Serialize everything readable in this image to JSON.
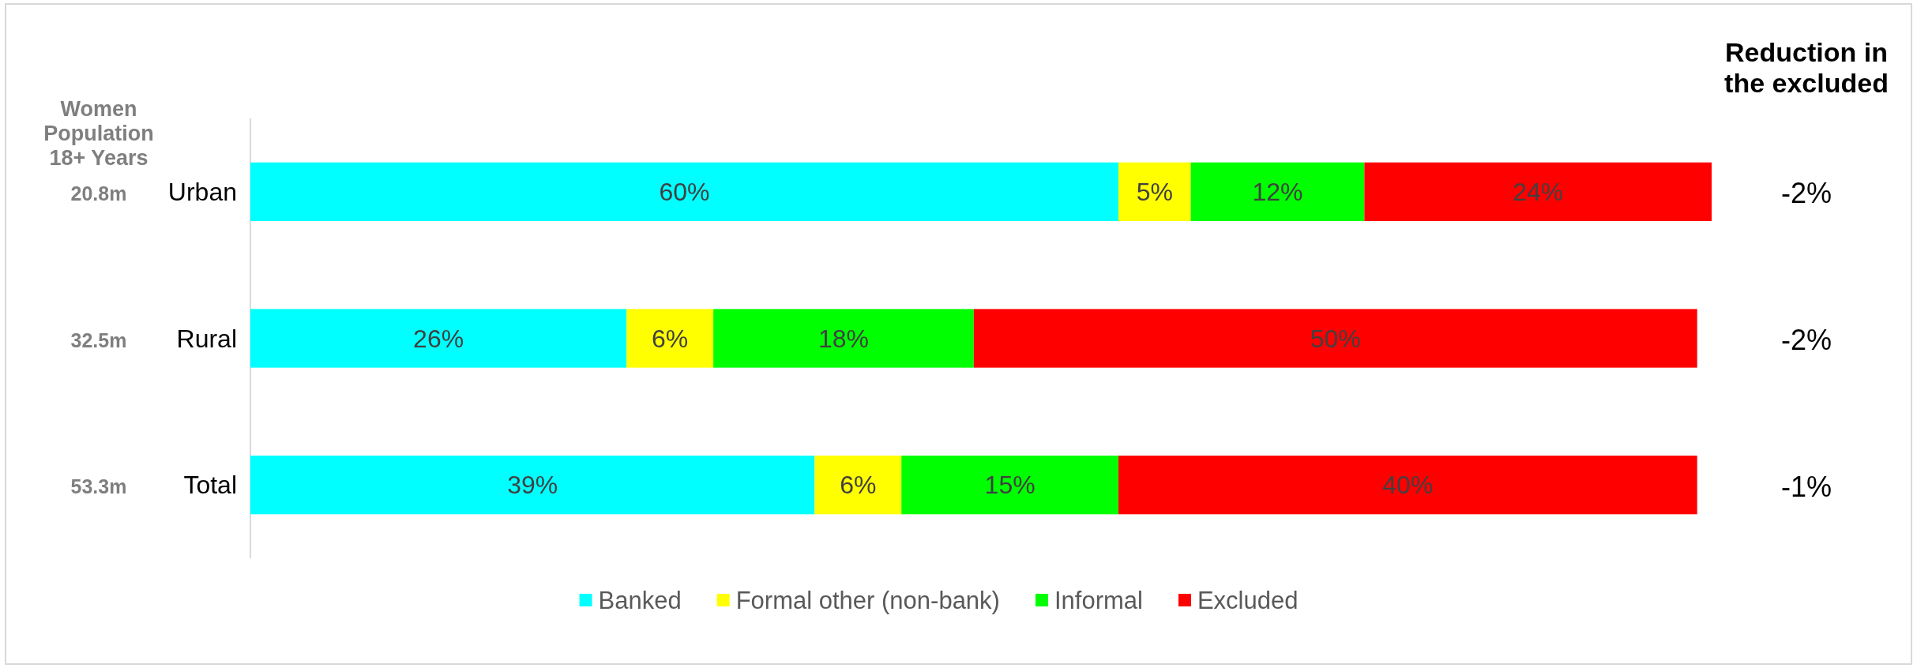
{
  "chart_data": {
    "type": "bar",
    "orientation": "horizontal",
    "stacked": true,
    "categories": [
      "Urban",
      "Rural",
      "Total"
    ],
    "series": [
      {
        "name": "Banked",
        "color": "#00ffff",
        "values": [
          60,
          26,
          39
        ],
        "value_labels": [
          "60%",
          "26%",
          "39%"
        ]
      },
      {
        "name": "Formal other (non-bank)",
        "color": "#ffff00",
        "values": [
          5,
          6,
          6
        ],
        "value_labels": [
          "5%",
          "6%",
          "6%"
        ]
      },
      {
        "name": "Informal",
        "color": "#00ff00",
        "values": [
          12,
          18,
          15
        ],
        "value_labels": [
          "12%",
          "18%",
          "15%"
        ]
      },
      {
        "name": "Excluded",
        "color": "#ff0000",
        "values": [
          24,
          50,
          40
        ],
        "value_labels": [
          "24%",
          "50%",
          "40%"
        ]
      }
    ],
    "legend": "bottom",
    "annotations": [
      "Women Population 18+ Years",
      "20.8m",
      "32.5m",
      "53.3m",
      "Reduction in the excluded",
      "-2%",
      "-2%",
      "-1%"
    ]
  }
}
